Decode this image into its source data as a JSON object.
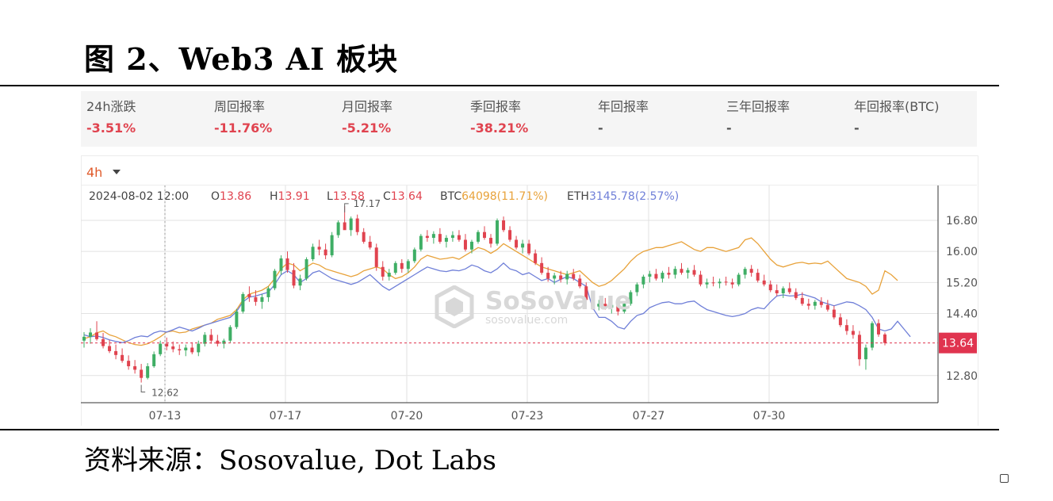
{
  "figure": {
    "title": "图  2、Web3 AI 板块"
  },
  "stats": [
    {
      "label": "24h涨跌",
      "value": "-3.51%"
    },
    {
      "label": "周回报率",
      "value": "-11.76%"
    },
    {
      "label": "月回报率",
      "value": "-5.21%"
    },
    {
      "label": "季回报率",
      "value": "-38.21%"
    },
    {
      "label": "年回报率",
      "value": "-"
    },
    {
      "label": "三年回报率",
      "value": "-"
    },
    {
      "label": "年回报率(BTC)",
      "value": "-"
    }
  ],
  "timeframe": "4h",
  "ohlc": {
    "time": "2024-08-02 12:00",
    "o_label": "O",
    "o": "13.86",
    "h_label": "H",
    "h": "13.91",
    "l_label": "L",
    "l": "13.58",
    "c_label": "C",
    "c": "13.64",
    "btc_label": "BTC",
    "btc": "64098(11.71%)",
    "eth_label": "ETH",
    "eth": "3145.78(2.57%)"
  },
  "watermark": {
    "name": "SoSoValue",
    "url": "sosovalue.com"
  },
  "source": "资料来源：Sosovalue, Dot Labs",
  "colors": {
    "up": "#3fae65",
    "down": "#e0434f",
    "btc": "#e8a23a",
    "eth": "#6f7fd8",
    "current": "#e0344f"
  },
  "chart_data": {
    "type": "candlestick",
    "x_ticks": [
      "07-13",
      "07-17",
      "07-20",
      "07-23",
      "07-27",
      "07-30"
    ],
    "y_ticks": [
      12.8,
      14.4,
      15.2,
      16.0,
      16.8
    ],
    "ylim": [
      12.1,
      17.7
    ],
    "current_price": 13.64,
    "max_label": 17.17,
    "min_label": 12.62,
    "grid": true,
    "ohlc_series": [
      [
        13.7,
        13.92,
        13.52,
        13.8
      ],
      [
        13.8,
        14.02,
        13.62,
        13.91
      ],
      [
        13.91,
        14.2,
        13.7,
        13.74
      ],
      [
        13.74,
        13.9,
        13.5,
        13.56
      ],
      [
        13.56,
        13.72,
        13.38,
        13.43
      ],
      [
        13.43,
        13.6,
        13.22,
        13.33
      ],
      [
        13.33,
        13.5,
        13.13,
        13.18
      ],
      [
        13.18,
        13.32,
        12.95,
        13.04
      ],
      [
        13.04,
        13.2,
        12.85,
        12.95
      ],
      [
        12.95,
        13.1,
        12.62,
        12.74
      ],
      [
        12.74,
        13.12,
        12.7,
        13.04
      ],
      [
        13.04,
        13.42,
        13.0,
        13.35
      ],
      [
        13.35,
        13.7,
        13.3,
        13.62
      ],
      [
        13.62,
        13.78,
        13.45,
        13.55
      ],
      [
        13.55,
        13.68,
        13.4,
        13.48
      ],
      [
        13.48,
        13.6,
        13.33,
        13.45
      ],
      [
        13.45,
        13.6,
        13.3,
        13.52
      ],
      [
        13.52,
        13.66,
        13.35,
        13.4
      ],
      [
        13.4,
        13.7,
        13.3,
        13.62
      ],
      [
        13.62,
        13.92,
        13.55,
        13.85
      ],
      [
        13.85,
        14.0,
        13.62,
        13.7
      ],
      [
        13.7,
        13.85,
        13.55,
        13.62
      ],
      [
        13.62,
        13.75,
        13.5,
        13.7
      ],
      [
        13.7,
        14.1,
        13.65,
        14.05
      ],
      [
        14.05,
        14.52,
        14.0,
        14.45
      ],
      [
        14.45,
        14.95,
        14.4,
        14.9
      ],
      [
        14.9,
        15.1,
        14.7,
        14.82
      ],
      [
        14.82,
        15.0,
        14.6,
        14.7
      ],
      [
        14.7,
        14.9,
        14.52,
        14.82
      ],
      [
        14.82,
        15.1,
        14.7,
        15.05
      ],
      [
        15.05,
        15.55,
        15.0,
        15.5
      ],
      [
        15.5,
        15.9,
        15.4,
        15.82
      ],
      [
        15.82,
        16.0,
        15.45,
        15.52
      ],
      [
        15.52,
        15.7,
        15.05,
        15.12
      ],
      [
        15.12,
        15.4,
        15.0,
        15.3
      ],
      [
        15.3,
        15.85,
        15.25,
        15.8
      ],
      [
        15.8,
        16.2,
        15.75,
        16.12
      ],
      [
        16.12,
        16.3,
        15.9,
        16.05
      ],
      [
        16.05,
        16.2,
        15.8,
        15.9
      ],
      [
        15.9,
        16.5,
        15.85,
        16.42
      ],
      [
        16.42,
        16.8,
        16.35,
        16.75
      ],
      [
        16.75,
        17.17,
        16.6,
        16.55
      ],
      [
        16.55,
        16.9,
        16.4,
        16.85
      ],
      [
        16.85,
        16.95,
        16.42,
        16.5
      ],
      [
        16.5,
        16.6,
        16.2,
        16.25
      ],
      [
        16.25,
        16.4,
        16.05,
        16.1
      ],
      [
        16.1,
        16.2,
        15.5,
        15.6
      ],
      [
        15.6,
        15.75,
        15.25,
        15.35
      ],
      [
        15.35,
        15.55,
        15.25,
        15.45
      ],
      [
        15.45,
        15.75,
        15.4,
        15.7
      ],
      [
        15.7,
        15.8,
        15.45,
        15.55
      ],
      [
        15.55,
        15.8,
        15.45,
        15.75
      ],
      [
        15.75,
        16.1,
        15.7,
        16.05
      ],
      [
        16.05,
        16.45,
        16.0,
        16.4
      ],
      [
        16.4,
        16.55,
        16.25,
        16.35
      ],
      [
        16.35,
        16.52,
        16.2,
        16.45
      ],
      [
        16.45,
        16.6,
        16.2,
        16.25
      ],
      [
        16.25,
        16.42,
        16.1,
        16.35
      ],
      [
        16.35,
        16.52,
        16.25,
        16.42
      ],
      [
        16.42,
        16.55,
        16.25,
        16.3
      ],
      [
        16.3,
        16.45,
        16.0,
        16.05
      ],
      [
        16.05,
        16.3,
        15.95,
        16.25
      ],
      [
        16.25,
        16.55,
        16.2,
        16.5
      ],
      [
        16.5,
        16.65,
        16.3,
        16.35
      ],
      [
        16.35,
        16.45,
        16.1,
        16.2
      ],
      [
        16.2,
        16.85,
        16.15,
        16.8
      ],
      [
        16.8,
        16.9,
        16.5,
        16.55
      ],
      [
        16.55,
        16.65,
        16.25,
        16.3
      ],
      [
        16.3,
        16.4,
        16.05,
        16.1
      ],
      [
        16.1,
        16.3,
        15.95,
        16.2
      ],
      [
        16.2,
        16.3,
        15.9,
        15.95
      ],
      [
        15.95,
        16.05,
        15.65,
        15.7
      ],
      [
        15.7,
        15.85,
        15.4,
        15.45
      ],
      [
        15.45,
        15.6,
        15.22,
        15.3
      ],
      [
        15.3,
        15.45,
        15.15,
        15.38
      ],
      [
        15.38,
        15.5,
        15.2,
        15.28
      ],
      [
        15.28,
        15.5,
        15.15,
        15.42
      ],
      [
        15.42,
        15.55,
        15.25,
        15.3
      ],
      [
        15.3,
        15.4,
        15.05,
        15.1
      ],
      [
        15.1,
        15.2,
        14.7,
        14.75
      ],
      [
        14.75,
        14.9,
        14.5,
        14.58
      ],
      [
        14.58,
        14.75,
        14.48,
        14.65
      ],
      [
        14.65,
        14.8,
        14.5,
        14.55
      ],
      [
        14.55,
        14.7,
        14.4,
        14.62
      ],
      [
        14.62,
        14.8,
        14.35,
        14.45
      ],
      [
        14.45,
        14.7,
        14.4,
        14.65
      ],
      [
        14.65,
        15.0,
        14.6,
        14.95
      ],
      [
        14.95,
        15.2,
        14.85,
        15.15
      ],
      [
        15.15,
        15.4,
        15.05,
        15.35
      ],
      [
        15.35,
        15.5,
        15.2,
        15.42
      ],
      [
        15.42,
        15.55,
        15.25,
        15.3
      ],
      [
        15.3,
        15.5,
        15.2,
        15.45
      ],
      [
        15.45,
        15.6,
        15.3,
        15.4
      ],
      [
        15.4,
        15.62,
        15.3,
        15.55
      ],
      [
        15.55,
        15.7,
        15.4,
        15.45
      ],
      [
        15.45,
        15.58,
        15.3,
        15.52
      ],
      [
        15.52,
        15.65,
        15.35,
        15.4
      ],
      [
        15.4,
        15.5,
        15.1,
        15.15
      ],
      [
        15.15,
        15.3,
        15.05,
        15.2
      ],
      [
        15.2,
        15.35,
        15.1,
        15.18
      ],
      [
        15.18,
        15.3,
        15.05,
        15.22
      ],
      [
        15.22,
        15.35,
        15.12,
        15.2
      ],
      [
        15.2,
        15.3,
        15.05,
        15.15
      ],
      [
        15.15,
        15.45,
        15.1,
        15.4
      ],
      [
        15.4,
        15.6,
        15.3,
        15.55
      ],
      [
        15.55,
        15.65,
        15.35,
        15.45
      ],
      [
        15.45,
        15.55,
        15.2,
        15.25
      ],
      [
        15.25,
        15.4,
        15.1,
        15.15
      ],
      [
        15.15,
        15.25,
        14.95,
        15.0
      ],
      [
        15.0,
        15.15,
        14.85,
        14.92
      ],
      [
        14.92,
        15.1,
        14.8,
        15.05
      ],
      [
        15.05,
        15.2,
        14.9,
        14.95
      ],
      [
        14.95,
        15.05,
        14.75,
        14.8
      ],
      [
        14.8,
        14.95,
        14.6,
        14.65
      ],
      [
        14.65,
        14.78,
        14.5,
        14.6
      ],
      [
        14.6,
        14.75,
        14.5,
        14.7
      ],
      [
        14.7,
        14.82,
        14.55,
        14.62
      ],
      [
        14.62,
        14.75,
        14.45,
        14.5
      ],
      [
        14.5,
        14.6,
        14.25,
        14.3
      ],
      [
        14.3,
        14.4,
        14.05,
        14.1
      ],
      [
        14.1,
        14.25,
        13.85,
        13.95
      ],
      [
        13.95,
        14.1,
        13.75,
        13.85
      ],
      [
        13.85,
        13.95,
        13.05,
        13.22
      ],
      [
        13.22,
        13.6,
        12.95,
        13.52
      ],
      [
        13.52,
        14.2,
        13.45,
        14.15
      ],
      [
        14.15,
        14.25,
        13.8,
        13.86
      ],
      [
        13.86,
        13.91,
        13.58,
        13.64
      ]
    ],
    "series": [
      {
        "name": "BTC",
        "values": [
          13.75,
          13.8,
          13.9,
          13.95,
          13.85,
          13.8,
          13.72,
          13.65,
          13.6,
          13.58,
          13.62,
          13.7,
          13.8,
          13.92,
          13.95,
          13.9,
          13.92,
          14.0,
          14.05,
          14.1,
          14.15,
          14.25,
          14.3,
          14.35,
          14.5,
          14.75,
          14.9,
          14.95,
          15.0,
          15.1,
          15.3,
          15.55,
          15.7,
          15.65,
          15.5,
          15.6,
          15.7,
          15.65,
          15.55,
          15.5,
          15.45,
          15.4,
          15.35,
          15.4,
          15.5,
          15.55,
          15.6,
          15.55,
          15.4,
          15.3,
          15.35,
          15.45,
          15.6,
          15.8,
          15.9,
          15.85,
          15.8,
          15.82,
          15.85,
          15.8,
          15.9,
          16.0,
          16.1,
          16.05,
          15.95,
          16.05,
          16.2,
          16.1,
          16.0,
          15.9,
          15.8,
          15.7,
          15.6,
          15.55,
          15.5,
          15.45,
          15.4,
          15.45,
          15.5,
          15.35,
          15.2,
          15.1,
          15.15,
          15.25,
          15.4,
          15.55,
          15.75,
          15.9,
          16.0,
          16.05,
          16.1,
          16.1,
          16.15,
          16.2,
          16.25,
          16.15,
          16.05,
          16.0,
          16.1,
          16.1,
          16.05,
          16.0,
          16.05,
          16.1,
          16.3,
          16.35,
          16.2,
          16.0,
          15.8,
          15.65,
          15.6,
          15.65,
          15.7,
          15.72,
          15.68,
          15.7,
          15.68,
          15.75,
          15.6,
          15.45,
          15.3,
          15.25,
          15.2,
          15.1,
          14.9,
          15.0,
          15.5,
          15.4,
          15.25
        ]
      },
      {
        "name": "ETH",
        "values": [
          13.85,
          13.8,
          13.82,
          13.78,
          13.72,
          13.68,
          13.65,
          13.7,
          13.78,
          13.82,
          13.8,
          13.9,
          13.95,
          13.92,
          13.98,
          14.05,
          14.0,
          13.95,
          14.02,
          14.1,
          14.15,
          14.2,
          14.25,
          14.3,
          14.45,
          14.7,
          14.82,
          14.85,
          14.9,
          14.95,
          15.15,
          15.4,
          15.5,
          15.4,
          15.2,
          15.3,
          15.45,
          15.5,
          15.4,
          15.3,
          15.25,
          15.2,
          15.15,
          15.2,
          15.3,
          15.4,
          15.25,
          15.1,
          15.0,
          15.1,
          15.2,
          15.3,
          15.4,
          15.5,
          15.6,
          15.55,
          15.5,
          15.48,
          15.52,
          15.5,
          15.55,
          15.65,
          15.6,
          15.5,
          15.45,
          15.55,
          15.7,
          15.55,
          15.5,
          15.4,
          15.45,
          15.35,
          15.25,
          15.3,
          15.2,
          15.28,
          15.35,
          15.3,
          15.2,
          15.1,
          14.55,
          14.3,
          14.3,
          14.2,
          14.05,
          14.0,
          14.2,
          14.35,
          14.4,
          14.55,
          14.62,
          14.68,
          14.7,
          14.65,
          14.65,
          14.7,
          14.72,
          14.6,
          14.5,
          14.45,
          14.4,
          14.35,
          14.32,
          14.35,
          14.4,
          14.5,
          14.55,
          14.52,
          14.7,
          14.85,
          14.88,
          14.85,
          14.86,
          14.9,
          14.85,
          14.8,
          14.7,
          14.65,
          14.6,
          14.65,
          14.7,
          14.68,
          14.6,
          14.5,
          14.3,
          14.0,
          13.95,
          14.0,
          14.2,
          14.0,
          13.8
        ]
      }
    ]
  }
}
